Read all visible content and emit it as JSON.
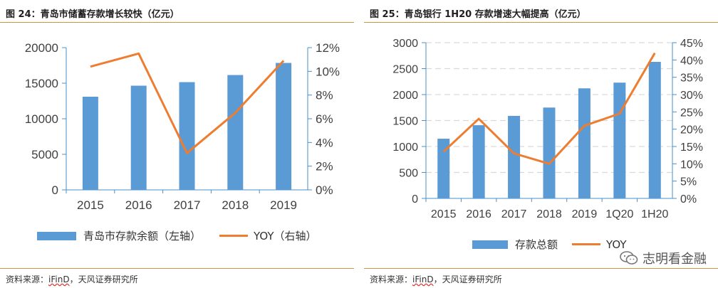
{
  "colors": {
    "bar": "#5b9bd5",
    "line": "#ed7d31",
    "axis": "#4a90c8",
    "rule": "#c9963f",
    "grid": "#d9d9d9"
  },
  "left": {
    "title": "图 24：青岛市储蓄存款增长较快（亿元）",
    "source_prefix": "资料来源：",
    "source_underlined": "iFinD",
    "source_suffix": "，天风证券研究所",
    "legend_bar": "青岛市存款余额（左轴）",
    "legend_line": "YOY（右轴）"
  },
  "right": {
    "title": "图 25：青岛银行 1H20 存款增速大幅提高（亿元）",
    "source_prefix": "资料来源：",
    "source_underlined": "iFinD",
    "source_suffix": "，天风证券研究所",
    "legend_bar": "存款总额",
    "legend_line": "YOY",
    "watermark": "志明看金融",
    "watermark_icon": "wechat-icon"
  },
  "chart_data": [
    {
      "type": "bar",
      "categories": [
        "2015",
        "2016",
        "2017",
        "2018",
        "2019"
      ],
      "series": [
        {
          "name": "青岛市存款余额（左轴）",
          "type": "bar",
          "axis": "left",
          "values": [
            13100,
            14650,
            15150,
            16150,
            17850
          ]
        },
        {
          "name": "YOY（右轴）",
          "type": "line",
          "axis": "right",
          "values": [
            10.4,
            11.5,
            3.1,
            6.5,
            10.9
          ]
        }
      ],
      "y_left": {
        "ylim": [
          0,
          20000
        ],
        "ticks": [
          "0",
          "5000",
          "10000",
          "15000",
          "20000"
        ]
      },
      "y_right": {
        "ylim": [
          0,
          12
        ],
        "ticks": [
          "0%",
          "2%",
          "4%",
          "6%",
          "8%",
          "10%",
          "12%"
        ]
      },
      "grid": false,
      "legend": "bottom"
    },
    {
      "type": "bar",
      "categories": [
        "2015",
        "2016",
        "2017",
        "2018",
        "2019",
        "1Q20",
        "1H20"
      ],
      "series": [
        {
          "name": "存款总额",
          "type": "bar",
          "axis": "left",
          "values": [
            1150,
            1410,
            1590,
            1750,
            2120,
            2230,
            2630
          ]
        },
        {
          "name": "YOY",
          "type": "line",
          "axis": "right",
          "values": [
            13.5,
            23,
            13,
            10,
            21,
            24.5,
            42
          ]
        }
      ],
      "y_left": {
        "ylim": [
          0,
          3000
        ],
        "ticks": [
          "0",
          "500",
          "1000",
          "1500",
          "2000",
          "2500",
          "3000"
        ]
      },
      "y_right": {
        "ylim": [
          0,
          45
        ],
        "ticks": [
          "0%",
          "5%",
          "10%",
          "15%",
          "20%",
          "25%",
          "30%",
          "35%",
          "40%",
          "45%"
        ]
      },
      "grid": true,
      "legend": "bottom"
    }
  ]
}
